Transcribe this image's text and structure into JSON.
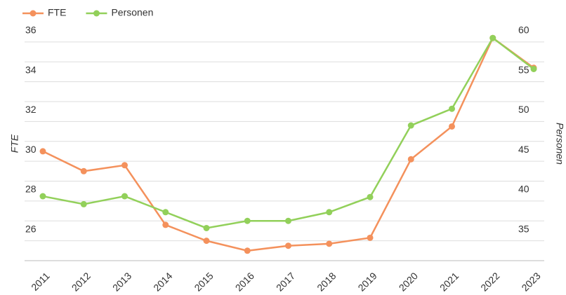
{
  "chart_data": {
    "type": "line",
    "categories": [
      "2011",
      "2012",
      "2013",
      "2014",
      "2015",
      "2016",
      "2017",
      "2018",
      "2019",
      "2020",
      "2021",
      "2022",
      "2023"
    ],
    "series": [
      {
        "name": "FTE",
        "color": "#f4915c",
        "values": [
          30.5,
          29.5,
          29.8,
          26.8,
          26.0,
          25.5,
          25.75,
          25.85,
          26.15,
          30.1,
          31.75,
          36.2,
          34.7
        ]
      },
      {
        "name": "Personen",
        "color": "#92d05a",
        "axis": "y2",
        "values": [
          40.6,
          39.6,
          40.6,
          38.6,
          36.6,
          37.5,
          37.5,
          38.6,
          40.5,
          49.5,
          51.6,
          60.5,
          56.6
        ]
      }
    ],
    "ylabel": "FTE",
    "y2label": "Personen",
    "ylim": [
      25,
      36.7
    ],
    "yticks": [
      26,
      28,
      30,
      32,
      34,
      36
    ],
    "y_minor_ticks": [
      25,
      27,
      29,
      31,
      33,
      35
    ],
    "y2lim": [
      32.5,
      61.75
    ],
    "y2ticks": [
      35,
      40,
      45,
      50,
      55,
      60
    ],
    "grid": true,
    "legend": "top-left"
  }
}
